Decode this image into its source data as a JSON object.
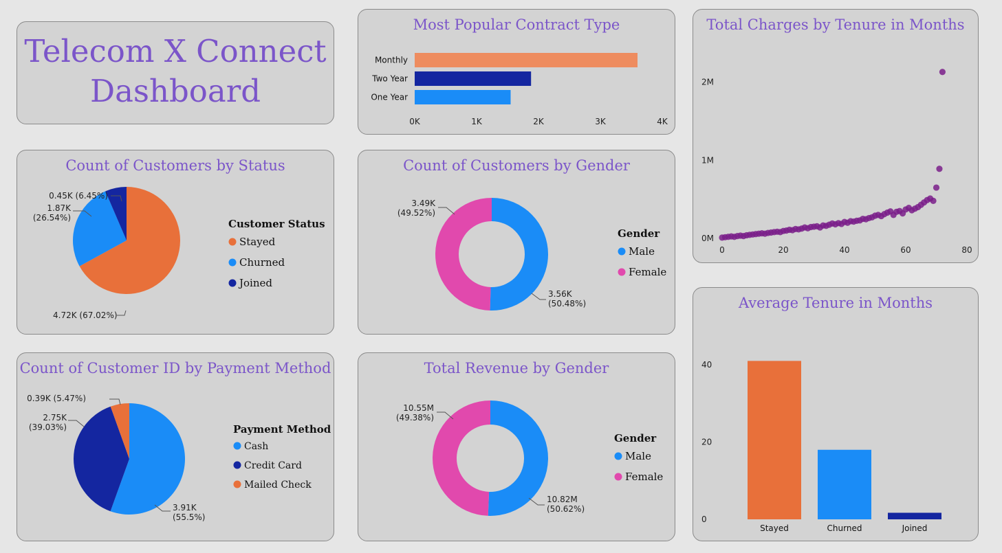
{
  "dashboard": {
    "title_line1": "Telecom X Connect",
    "title_line2": "Dashboard"
  },
  "colors": {
    "orange": "#e8703a",
    "light_orange": "#ee8c5f",
    "blue": "#1a8cf7",
    "dark_blue": "#1426a0",
    "pink": "#e149ad",
    "purple": "#7a1e8a",
    "title": "#7b55c9"
  },
  "chart_data": [
    {
      "id": "contract",
      "type": "bar",
      "orientation": "horizontal",
      "title": "Most Popular Contract Type",
      "categories": [
        "Monthly",
        "Two Year",
        "One Year"
      ],
      "values": [
        3600,
        1880,
        1550
      ],
      "colors": [
        "#ee8c5f",
        "#1426a0",
        "#1a8cf7"
      ],
      "xlim": [
        0,
        4000
      ],
      "xticks": [
        "0K",
        "1K",
        "2K",
        "3K",
        "4K"
      ]
    },
    {
      "id": "charges",
      "type": "scatter",
      "title": "Total Charges by Tenure in Months",
      "xlim": [
        0,
        80
      ],
      "ylim": [
        0,
        2400000
      ],
      "xticks": [
        "0",
        "20",
        "40",
        "60",
        "80"
      ],
      "yticks": [
        "0M",
        "1M",
        "2M"
      ],
      "points": [
        [
          0,
          10000
        ],
        [
          1,
          15000
        ],
        [
          2,
          20000
        ],
        [
          3,
          25000
        ],
        [
          4,
          20000
        ],
        [
          5,
          30000
        ],
        [
          6,
          35000
        ],
        [
          7,
          30000
        ],
        [
          8,
          40000
        ],
        [
          9,
          45000
        ],
        [
          10,
          50000
        ],
        [
          11,
          55000
        ],
        [
          12,
          60000
        ],
        [
          13,
          65000
        ],
        [
          14,
          60000
        ],
        [
          15,
          70000
        ],
        [
          16,
          75000
        ],
        [
          17,
          80000
        ],
        [
          18,
          85000
        ],
        [
          19,
          80000
        ],
        [
          20,
          95000
        ],
        [
          21,
          100000
        ],
        [
          22,
          110000
        ],
        [
          23,
          105000
        ],
        [
          24,
          120000
        ],
        [
          25,
          115000
        ],
        [
          26,
          125000
        ],
        [
          27,
          140000
        ],
        [
          28,
          130000
        ],
        [
          29,
          145000
        ],
        [
          30,
          150000
        ],
        [
          31,
          155000
        ],
        [
          32,
          140000
        ],
        [
          33,
          165000
        ],
        [
          34,
          160000
        ],
        [
          35,
          175000
        ],
        [
          36,
          190000
        ],
        [
          37,
          180000
        ],
        [
          38,
          195000
        ],
        [
          39,
          185000
        ],
        [
          40,
          210000
        ],
        [
          41,
          200000
        ],
        [
          42,
          220000
        ],
        [
          43,
          215000
        ],
        [
          44,
          225000
        ],
        [
          45,
          230000
        ],
        [
          46,
          250000
        ],
        [
          47,
          245000
        ],
        [
          48,
          260000
        ],
        [
          49,
          270000
        ],
        [
          50,
          290000
        ],
        [
          51,
          300000
        ],
        [
          52,
          285000
        ],
        [
          53,
          310000
        ],
        [
          54,
          330000
        ],
        [
          55,
          345000
        ],
        [
          56,
          300000
        ],
        [
          57,
          340000
        ],
        [
          58,
          350000
        ],
        [
          59,
          320000
        ],
        [
          60,
          370000
        ],
        [
          61,
          390000
        ],
        [
          62,
          360000
        ],
        [
          63,
          380000
        ],
        [
          64,
          400000
        ],
        [
          65,
          430000
        ],
        [
          66,
          460000
        ],
        [
          67,
          490000
        ],
        [
          68,
          510000
        ],
        [
          69,
          480000
        ],
        [
          70,
          650000
        ],
        [
          71,
          890000
        ],
        [
          72,
          2130000
        ]
      ],
      "point_color": "#7a1e8a"
    },
    {
      "id": "status",
      "type": "pie",
      "title": "Count of Customers by Status",
      "legend_title": "Customer Status",
      "slices": [
        {
          "name": "Stayed",
          "value": 67.02,
          "label": "4.72K (67.02%)",
          "color": "#e8703a"
        },
        {
          "name": "Churned",
          "value": 26.54,
          "label_line1": "1.87K",
          "label_line2": "(26.54%)",
          "color": "#1a8cf7"
        },
        {
          "name": "Joined",
          "value": 6.45,
          "label": "0.45K (6.45%)",
          "color": "#1426a0"
        }
      ]
    },
    {
      "id": "gender_count",
      "type": "donut",
      "title": "Count of Customers by Gender",
      "legend_title": "Gender",
      "slices": [
        {
          "name": "Male",
          "value": 50.48,
          "label_line1": "3.56K",
          "label_line2": "(50.48%)",
          "color": "#1a8cf7"
        },
        {
          "name": "Female",
          "value": 49.52,
          "label_line1": "3.49K",
          "label_line2": "(49.52%)",
          "color": "#e149ad"
        }
      ]
    },
    {
      "id": "tenure",
      "type": "bar",
      "title": "Average Tenure in Months",
      "categories": [
        "Stayed",
        "Churned",
        "Joined"
      ],
      "values": [
        41,
        18,
        1.7
      ],
      "colors": [
        "#e8703a",
        "#1a8cf7",
        "#1426a0"
      ],
      "ylim": [
        0,
        40
      ],
      "yticks": [
        "0",
        "20",
        "40"
      ]
    },
    {
      "id": "payment",
      "type": "pie",
      "title": "Count of Customer ID by Payment Method",
      "legend_title": "Payment Method",
      "slices": [
        {
          "name": "Cash",
          "value": 55.5,
          "label_line1": "3.91K",
          "label_line2": "(55.5%)",
          "color": "#1a8cf7"
        },
        {
          "name": "Credit Card",
          "value": 39.03,
          "label_line1": "2.75K",
          "label_line2": "(39.03%)",
          "color": "#1426a0"
        },
        {
          "name": "Mailed Check",
          "value": 5.47,
          "label": "0.39K (5.47%)",
          "color": "#e8703a"
        }
      ]
    },
    {
      "id": "revenue_gender",
      "type": "donut",
      "title": "Total Revenue by Gender",
      "legend_title": "Gender",
      "slices": [
        {
          "name": "Male",
          "value": 50.62,
          "label_line1": "10.82M",
          "label_line2": "(50.62%)",
          "color": "#1a8cf7"
        },
        {
          "name": "Female",
          "value": 49.38,
          "label_line1": "10.55M",
          "label_line2": "(49.38%)",
          "color": "#e149ad"
        }
      ]
    }
  ]
}
